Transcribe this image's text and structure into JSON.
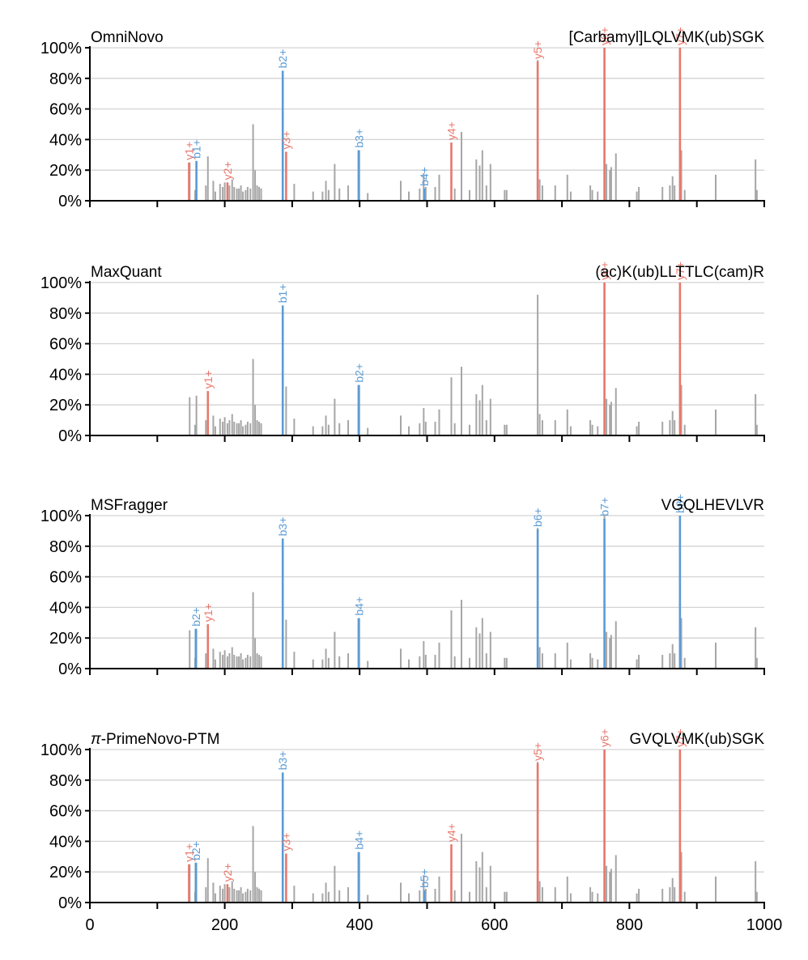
{
  "colors": {
    "b_ion": "#5b9bd5",
    "y_ion": "#e8776c",
    "background_peak": "#a6a6a6",
    "grid": "#d3d3d3",
    "axis": "#000000"
  },
  "chart_data": {
    "type": "bar",
    "x_axis": {
      "range": [
        0,
        1000
      ],
      "tick_labels": [
        "0",
        "200",
        "400",
        "600",
        "800",
        "1000"
      ]
    },
    "y_axis": {
      "range": [
        0,
        100
      ],
      "tick_labels": [
        "0%",
        "20%",
        "40%",
        "60%",
        "80%",
        "100%"
      ]
    },
    "grid": "horizontal",
    "background_peaks": [
      [
        148,
        25
      ],
      [
        156,
        7
      ],
      [
        158,
        26
      ],
      [
        172,
        10
      ],
      [
        175,
        29
      ],
      [
        183,
        13
      ],
      [
        186,
        6
      ],
      [
        193,
        11
      ],
      [
        197,
        9
      ],
      [
        200,
        12
      ],
      [
        204,
        8
      ],
      [
        207,
        10
      ],
      [
        211,
        14
      ],
      [
        214,
        9
      ],
      [
        218,
        8
      ],
      [
        221,
        8
      ],
      [
        224,
        10
      ],
      [
        227,
        6
      ],
      [
        231,
        7
      ],
      [
        234,
        9
      ],
      [
        238,
        8
      ],
      [
        242,
        50
      ],
      [
        245,
        20
      ],
      [
        248,
        10
      ],
      [
        251,
        9
      ],
      [
        254,
        8
      ],
      [
        286,
        85
      ],
      [
        291,
        32
      ],
      [
        303,
        11
      ],
      [
        331,
        6
      ],
      [
        345,
        6
      ],
      [
        350,
        13
      ],
      [
        354,
        7
      ],
      [
        363,
        24
      ],
      [
        370,
        8
      ],
      [
        383,
        10
      ],
      [
        398,
        33
      ],
      [
        412,
        5
      ],
      [
        461,
        13
      ],
      [
        473,
        6
      ],
      [
        489,
        8
      ],
      [
        495,
        18
      ],
      [
        498,
        9
      ],
      [
        512,
        9
      ],
      [
        518,
        17
      ],
      [
        536,
        38
      ],
      [
        541,
        8
      ],
      [
        551,
        45
      ],
      [
        563,
        7
      ],
      [
        573,
        27
      ],
      [
        578,
        23
      ],
      [
        582,
        33
      ],
      [
        588,
        10
      ],
      [
        594,
        24
      ],
      [
        615,
        7
      ],
      [
        618,
        7
      ],
      [
        664,
        92
      ],
      [
        667,
        14
      ],
      [
        671,
        10
      ],
      [
        690,
        10
      ],
      [
        708,
        17
      ],
      [
        713,
        6
      ],
      [
        742,
        10
      ],
      [
        745,
        7
      ],
      [
        753,
        6
      ],
      [
        763,
        100
      ],
      [
        766,
        24
      ],
      [
        771,
        20
      ],
      [
        773,
        22
      ],
      [
        780,
        31
      ],
      [
        811,
        6
      ],
      [
        814,
        9
      ],
      [
        849,
        9
      ],
      [
        860,
        10
      ],
      [
        864,
        16
      ],
      [
        867,
        10
      ],
      [
        875,
        100
      ],
      [
        877,
        33
      ],
      [
        882,
        7
      ],
      [
        928,
        17
      ],
      [
        987,
        27
      ],
      [
        989,
        7
      ]
    ],
    "panels": [
      {
        "title": "OmniNovo",
        "peptide": "[Carbamyl]LQLVMK(ub)SGK",
        "annotated_peaks": [
          {
            "label": "y1+",
            "mz": 147,
            "intensity": 25,
            "ion": "y"
          },
          {
            "label": "b1+",
            "mz": 158,
            "intensity": 26,
            "ion": "b"
          },
          {
            "label": "y2+",
            "mz": 204,
            "intensity": 12,
            "ion": "y"
          },
          {
            "label": "b2+",
            "mz": 286,
            "intensity": 85,
            "ion": "b"
          },
          {
            "label": "y3+",
            "mz": 291,
            "intensity": 32,
            "ion": "y"
          },
          {
            "label": "b3+",
            "mz": 399,
            "intensity": 33,
            "ion": "b"
          },
          {
            "label": "b4+",
            "mz": 496,
            "intensity": 8,
            "ion": "b"
          },
          {
            "label": "y4+",
            "mz": 536,
            "intensity": 38,
            "ion": "y"
          },
          {
            "label": "y5+",
            "mz": 664,
            "intensity": 91,
            "ion": "y"
          },
          {
            "label": "y6+",
            "mz": 763,
            "intensity": 100,
            "ion": "y"
          },
          {
            "label": "y7+",
            "mz": 875,
            "intensity": 100,
            "ion": "y"
          }
        ]
      },
      {
        "title": "MaxQuant",
        "peptide": "(ac)K(ub)LLTTLC(cam)R",
        "annotated_peaks": [
          {
            "label": "y1+",
            "mz": 175,
            "intensity": 29,
            "ion": "y"
          },
          {
            "label": "b1+",
            "mz": 286,
            "intensity": 85,
            "ion": "b"
          },
          {
            "label": "b2+",
            "mz": 399,
            "intensity": 33,
            "ion": "b"
          },
          {
            "label": "y6+",
            "mz": 763,
            "intensity": 100,
            "ion": "y"
          },
          {
            "label": "y7+",
            "mz": 875,
            "intensity": 100,
            "ion": "y"
          }
        ]
      },
      {
        "title": "MSFragger",
        "peptide": "VGQLHEVLVR",
        "annotated_peaks": [
          {
            "label": "b2+",
            "mz": 157,
            "intensity": 26,
            "ion": "b"
          },
          {
            "label": "y1+",
            "mz": 175,
            "intensity": 29,
            "ion": "y"
          },
          {
            "label": "b3+",
            "mz": 286,
            "intensity": 85,
            "ion": "b"
          },
          {
            "label": "b4+",
            "mz": 399,
            "intensity": 33,
            "ion": "b"
          },
          {
            "label": "b6+",
            "mz": 664,
            "intensity": 91,
            "ion": "b"
          },
          {
            "label": "b7+",
            "mz": 763,
            "intensity": 98,
            "ion": "b"
          },
          {
            "label": "b8+",
            "mz": 875,
            "intensity": 100,
            "ion": "b"
          }
        ]
      },
      {
        "title": "-PrimeNovo-PTM",
        "title_prefix_italic": "π",
        "peptide": "GVQLVMK(ub)SGK",
        "annotated_peaks": [
          {
            "label": "y1+",
            "mz": 147,
            "intensity": 25,
            "ion": "y"
          },
          {
            "label": "b2+",
            "mz": 157,
            "intensity": 26,
            "ion": "b"
          },
          {
            "label": "y2+",
            "mz": 204,
            "intensity": 12,
            "ion": "y"
          },
          {
            "label": "b3+",
            "mz": 286,
            "intensity": 85,
            "ion": "b"
          },
          {
            "label": "y3+",
            "mz": 291,
            "intensity": 32,
            "ion": "y"
          },
          {
            "label": "b4+",
            "mz": 399,
            "intensity": 33,
            "ion": "b"
          },
          {
            "label": "b5+",
            "mz": 496,
            "intensity": 8,
            "ion": "b"
          },
          {
            "label": "y4+",
            "mz": 536,
            "intensity": 38,
            "ion": "y"
          },
          {
            "label": "y5+",
            "mz": 664,
            "intensity": 91,
            "ion": "y"
          },
          {
            "label": "y6+",
            "mz": 763,
            "intensity": 100,
            "ion": "y"
          },
          {
            "label": "y7+",
            "mz": 875,
            "intensity": 100,
            "ion": "y"
          }
        ]
      }
    ]
  }
}
